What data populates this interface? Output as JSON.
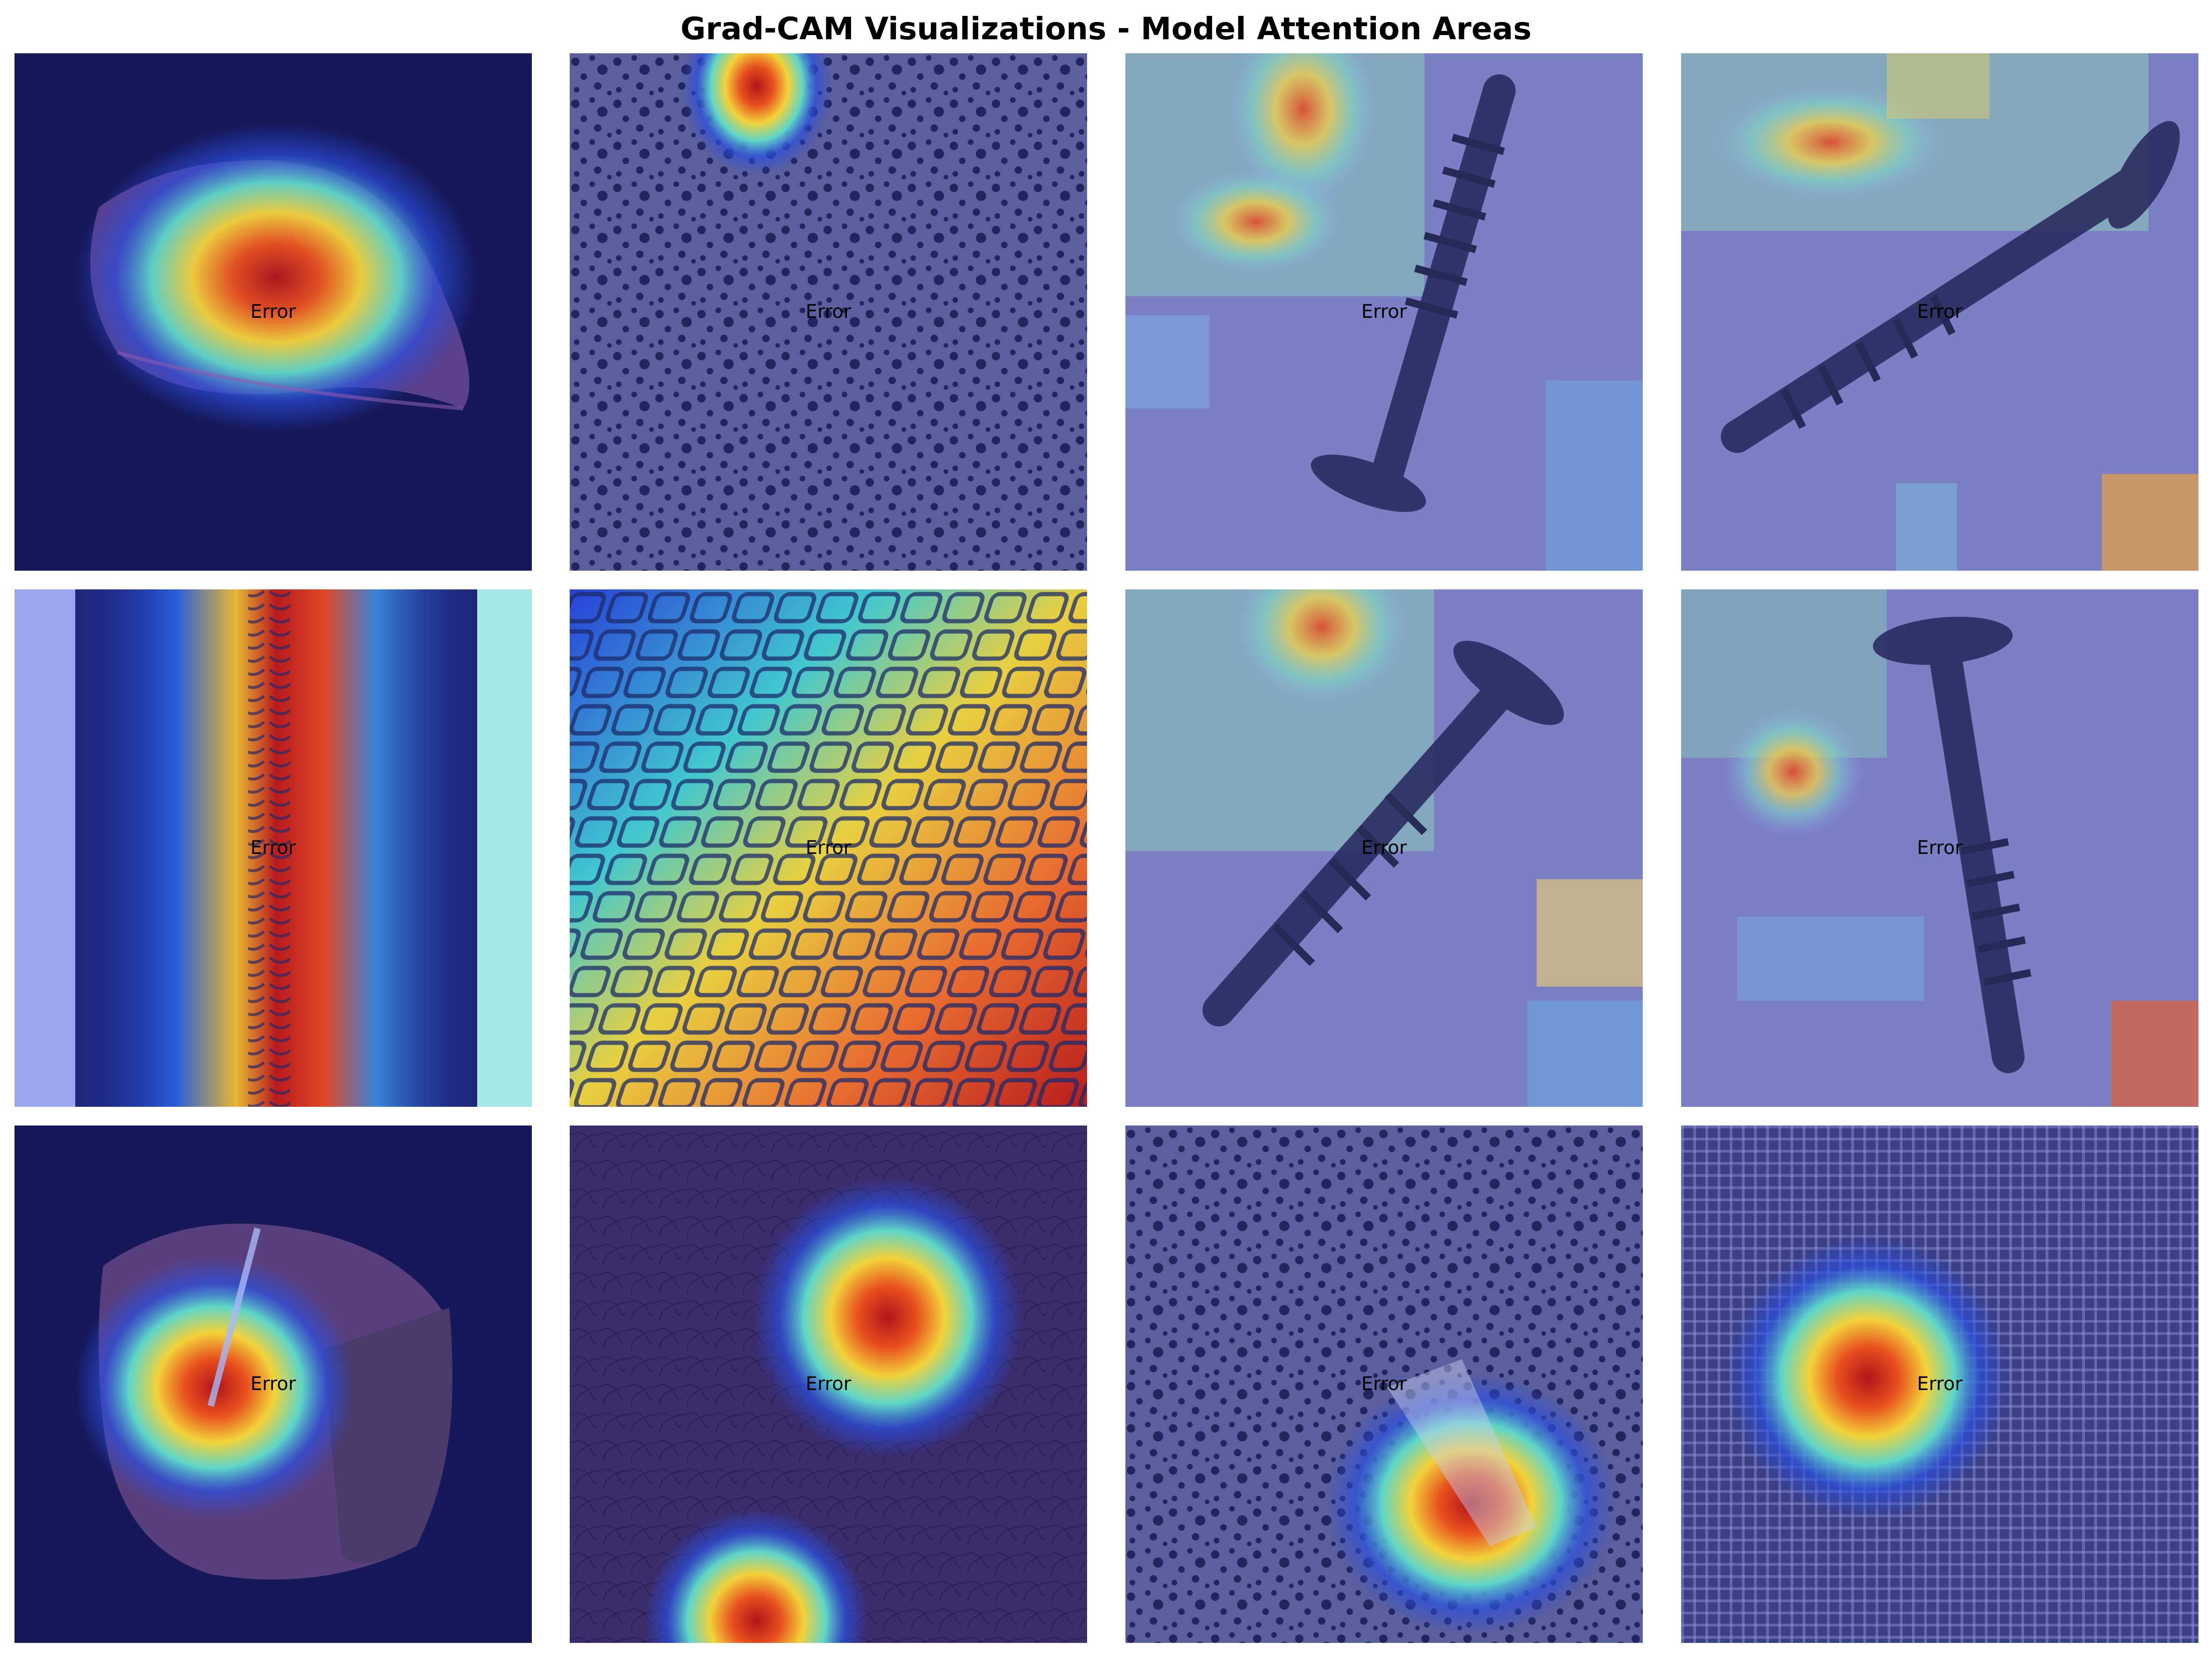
{
  "figure": {
    "title": "Grad-CAM Visualizations - Model Attention Areas"
  },
  "panels": [
    {
      "label": "Error",
      "subject": "hazelnut",
      "heatmap": "center"
    },
    {
      "label": "Error",
      "subject": "speckled-surface",
      "heatmap": "top-spot"
    },
    {
      "label": "Error",
      "subject": "screw",
      "heatmap": "scattered-top-left"
    },
    {
      "label": "Error",
      "subject": "screw",
      "heatmap": "top-left-band"
    },
    {
      "label": "Error",
      "subject": "zipper",
      "heatmap": "vertical-band"
    },
    {
      "label": "Error",
      "subject": "mesh-grid",
      "heatmap": "broad-right"
    },
    {
      "label": "Error",
      "subject": "screw",
      "heatmap": "top"
    },
    {
      "label": "Error",
      "subject": "screw",
      "heatmap": "left-spot"
    },
    {
      "label": "Error",
      "subject": "hazelnut-cut",
      "heatmap": "center-left"
    },
    {
      "label": "Error",
      "subject": "leather",
      "heatmap": "two-spots"
    },
    {
      "label": "Error",
      "subject": "speckled-surface",
      "heatmap": "bottom-right-spot"
    },
    {
      "label": "Error",
      "subject": "fabric",
      "heatmap": "lower-left-spot"
    }
  ],
  "colors": {
    "background_dark": "#16185a",
    "tint": "#6a6cb8",
    "heat_hot": "#c81e1e",
    "heat_warm": "#f0c93a",
    "heat_cool": "#5fd6d0"
  }
}
